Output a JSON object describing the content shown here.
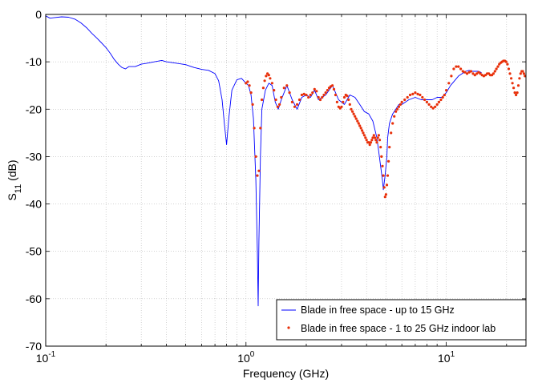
{
  "chart_data": {
    "type": "line",
    "xlabel": "Frequency (GHz)",
    "ylabel_main": "S",
    "ylabel_sub": "11",
    "ylabel_unit": " (dB)",
    "x_scale": "log",
    "xlim": [
      0.1,
      25
    ],
    "ylim": [
      -70,
      0
    ],
    "grid": true,
    "legend_position": "bottom-right",
    "x_ticks": [
      {
        "value": 0.1,
        "base": "10",
        "exp": "-1"
      },
      {
        "value": 1,
        "base": "10",
        "exp": "0"
      },
      {
        "value": 10,
        "base": "10",
        "exp": "1"
      }
    ],
    "y_ticks": [
      {
        "value": 0,
        "label": "0"
      },
      {
        "value": -10,
        "label": "-10"
      },
      {
        "value": -20,
        "label": "-20"
      },
      {
        "value": -30,
        "label": "-30"
      },
      {
        "value": -40,
        "label": "-40"
      },
      {
        "value": -50,
        "label": "-50"
      },
      {
        "value": -60,
        "label": "-60"
      },
      {
        "value": -70,
        "label": "-70"
      }
    ],
    "series": [
      {
        "name": "Blade in free space - up to 15 GHz",
        "style": "line",
        "color": "#0000ff",
        "points": [
          [
            0.1,
            -0.3
          ],
          [
            0.105,
            -0.8
          ],
          [
            0.11,
            -0.7
          ],
          [
            0.12,
            -0.5
          ],
          [
            0.13,
            -0.6
          ],
          [
            0.14,
            -1.0
          ],
          [
            0.15,
            -1.8
          ],
          [
            0.16,
            -2.8
          ],
          [
            0.17,
            -4.0
          ],
          [
            0.18,
            -5.0
          ],
          [
            0.19,
            -6.0
          ],
          [
            0.2,
            -7.0
          ],
          [
            0.21,
            -8.2
          ],
          [
            0.22,
            -9.5
          ],
          [
            0.23,
            -10.5
          ],
          [
            0.24,
            -11.2
          ],
          [
            0.25,
            -11.5
          ],
          [
            0.26,
            -11.0
          ],
          [
            0.28,
            -11.0
          ],
          [
            0.3,
            -10.5
          ],
          [
            0.32,
            -10.3
          ],
          [
            0.35,
            -10.0
          ],
          [
            0.38,
            -9.7
          ],
          [
            0.4,
            -10.0
          ],
          [
            0.45,
            -10.3
          ],
          [
            0.5,
            -10.6
          ],
          [
            0.55,
            -11.2
          ],
          [
            0.6,
            -11.6
          ],
          [
            0.65,
            -11.8
          ],
          [
            0.7,
            -12.5
          ],
          [
            0.73,
            -14.0
          ],
          [
            0.76,
            -18.0
          ],
          [
            0.78,
            -23.0
          ],
          [
            0.8,
            -27.5
          ],
          [
            0.82,
            -22.0
          ],
          [
            0.85,
            -16.0
          ],
          [
            0.9,
            -13.8
          ],
          [
            0.95,
            -13.5
          ],
          [
            1.0,
            -14.5
          ],
          [
            1.03,
            -15.0
          ],
          [
            1.06,
            -17.0
          ],
          [
            1.09,
            -22.0
          ],
          [
            1.12,
            -35.0
          ],
          [
            1.14,
            -50.0
          ],
          [
            1.15,
            -61.5
          ],
          [
            1.16,
            -48.0
          ],
          [
            1.18,
            -30.0
          ],
          [
            1.2,
            -20.0
          ],
          [
            1.25,
            -16.0
          ],
          [
            1.3,
            -14.5
          ],
          [
            1.35,
            -15.0
          ],
          [
            1.4,
            -18.5
          ],
          [
            1.45,
            -20.0
          ],
          [
            1.5,
            -18.0
          ],
          [
            1.6,
            -15.0
          ],
          [
            1.7,
            -18.0
          ],
          [
            1.8,
            -20.0
          ],
          [
            1.9,
            -17.5
          ],
          [
            2.0,
            -17.0
          ],
          [
            2.1,
            -17.5
          ],
          [
            2.2,
            -16.0
          ],
          [
            2.3,
            -18.0
          ],
          [
            2.5,
            -17.0
          ],
          [
            2.7,
            -15.0
          ],
          [
            2.9,
            -18.0
          ],
          [
            3.1,
            -19.0
          ],
          [
            3.3,
            -17.0
          ],
          [
            3.5,
            -17.5
          ],
          [
            3.7,
            -19.0
          ],
          [
            3.9,
            -20.5
          ],
          [
            4.1,
            -21.0
          ],
          [
            4.3,
            -22.5
          ],
          [
            4.5,
            -26.0
          ],
          [
            4.6,
            -29.0
          ],
          [
            4.7,
            -32.0
          ],
          [
            4.8,
            -35.0
          ],
          [
            4.85,
            -37.0
          ],
          [
            4.95,
            -34.0
          ],
          [
            5.05,
            -30.0
          ],
          [
            5.1,
            -26.0
          ],
          [
            5.2,
            -23.0
          ],
          [
            5.4,
            -21.0
          ],
          [
            5.6,
            -20.0
          ],
          [
            5.8,
            -19.0
          ],
          [
            6.0,
            -19.0
          ],
          [
            6.5,
            -18.0
          ],
          [
            7.0,
            -17.5
          ],
          [
            7.5,
            -18.0
          ],
          [
            8.0,
            -18.0
          ],
          [
            8.5,
            -18.0
          ],
          [
            9.0,
            -17.5
          ],
          [
            9.5,
            -17.5
          ],
          [
            10.0,
            -16.5
          ],
          [
            10.5,
            -15.0
          ],
          [
            11.0,
            -14.0
          ],
          [
            11.5,
            -13.0
          ],
          [
            12.0,
            -12.5
          ],
          [
            12.5,
            -12.0
          ],
          [
            13.0,
            -11.8
          ],
          [
            13.5,
            -12.0
          ],
          [
            14.0,
            -12.0
          ],
          [
            14.5,
            -12.0
          ],
          [
            15.0,
            -12.3
          ]
        ]
      },
      {
        "name": "Blade in free space - 1 to 25 GHz indoor lab",
        "style": "dots",
        "color": "#e8300a",
        "points": [
          [
            1.0,
            -14.5
          ],
          [
            1.02,
            -14.2
          ],
          [
            1.04,
            -15.0
          ],
          [
            1.06,
            -16.5
          ],
          [
            1.08,
            -19.0
          ],
          [
            1.1,
            -24.0
          ],
          [
            1.12,
            -30.0
          ],
          [
            1.14,
            -34.0
          ],
          [
            1.16,
            -33.0
          ],
          [
            1.18,
            -24.0
          ],
          [
            1.2,
            -18.0
          ],
          [
            1.22,
            -15.5
          ],
          [
            1.24,
            -14.0
          ],
          [
            1.26,
            -13.0
          ],
          [
            1.28,
            -12.5
          ],
          [
            1.3,
            -12.8
          ],
          [
            1.32,
            -13.5
          ],
          [
            1.35,
            -14.5
          ],
          [
            1.38,
            -16.0
          ],
          [
            1.41,
            -18.0
          ],
          [
            1.44,
            -19.5
          ],
          [
            1.47,
            -19.0
          ],
          [
            1.5,
            -17.5
          ],
          [
            1.55,
            -15.5
          ],
          [
            1.6,
            -15.0
          ],
          [
            1.65,
            -16.5
          ],
          [
            1.7,
            -18.5
          ],
          [
            1.75,
            -19.5
          ],
          [
            1.8,
            -19.0
          ],
          [
            1.85,
            -18.0
          ],
          [
            1.9,
            -17.0
          ],
          [
            1.95,
            -16.8
          ],
          [
            2.0,
            -17.0
          ],
          [
            2.05,
            -17.5
          ],
          [
            2.1,
            -17.0
          ],
          [
            2.15,
            -16.5
          ],
          [
            2.2,
            -15.8
          ],
          [
            2.25,
            -16.2
          ],
          [
            2.3,
            -17.5
          ],
          [
            2.35,
            -18.0
          ],
          [
            2.4,
            -17.5
          ],
          [
            2.45,
            -17.0
          ],
          [
            2.5,
            -16.5
          ],
          [
            2.55,
            -16.0
          ],
          [
            2.6,
            -15.5
          ],
          [
            2.65,
            -15.2
          ],
          [
            2.7,
            -15.0
          ],
          [
            2.75,
            -15.8
          ],
          [
            2.8,
            -17.0
          ],
          [
            2.85,
            -18.5
          ],
          [
            2.9,
            -19.5
          ],
          [
            2.95,
            -19.8
          ],
          [
            3.0,
            -19.5
          ],
          [
            3.05,
            -18.5
          ],
          [
            3.1,
            -17.5
          ],
          [
            3.15,
            -17.0
          ],
          [
            3.2,
            -17.2
          ],
          [
            3.25,
            -18.0
          ],
          [
            3.3,
            -19.0
          ],
          [
            3.35,
            -20.0
          ],
          [
            3.4,
            -20.5
          ],
          [
            3.45,
            -21.0
          ],
          [
            3.5,
            -21.5
          ],
          [
            3.55,
            -22.0
          ],
          [
            3.6,
            -22.5
          ],
          [
            3.65,
            -23.0
          ],
          [
            3.7,
            -23.5
          ],
          [
            3.75,
            -24.0
          ],
          [
            3.8,
            -24.5
          ],
          [
            3.85,
            -25.0
          ],
          [
            3.9,
            -25.5
          ],
          [
            3.95,
            -26.0
          ],
          [
            4.0,
            -26.5
          ],
          [
            4.05,
            -27.0
          ],
          [
            4.1,
            -27.0
          ],
          [
            4.15,
            -27.5
          ],
          [
            4.2,
            -27.0
          ],
          [
            4.25,
            -26.5
          ],
          [
            4.3,
            -26.0
          ],
          [
            4.35,
            -25.5
          ],
          [
            4.4,
            -26.0
          ],
          [
            4.45,
            -26.5
          ],
          [
            4.5,
            -27.0
          ],
          [
            4.55,
            -26.0
          ],
          [
            4.6,
            -25.5
          ],
          [
            4.65,
            -26.5
          ],
          [
            4.7,
            -28.0
          ],
          [
            4.75,
            -30.0
          ],
          [
            4.8,
            -32.0
          ],
          [
            4.85,
            -34.0
          ],
          [
            4.9,
            -36.5
          ],
          [
            4.95,
            -38.5
          ],
          [
            5.0,
            -38.0
          ],
          [
            5.05,
            -36.0
          ],
          [
            5.1,
            -34.0
          ],
          [
            5.15,
            -31.0
          ],
          [
            5.2,
            -28.0
          ],
          [
            5.3,
            -25.0
          ],
          [
            5.4,
            -23.0
          ],
          [
            5.5,
            -21.5
          ],
          [
            5.6,
            -20.5
          ],
          [
            5.7,
            -20.0
          ],
          [
            5.8,
            -19.5
          ],
          [
            5.9,
            -19.0
          ],
          [
            6.0,
            -18.5
          ],
          [
            6.2,
            -18.0
          ],
          [
            6.4,
            -17.5
          ],
          [
            6.6,
            -17.0
          ],
          [
            6.8,
            -16.8
          ],
          [
            7.0,
            -16.5
          ],
          [
            7.2,
            -16.8
          ],
          [
            7.4,
            -17.0
          ],
          [
            7.6,
            -17.5
          ],
          [
            7.8,
            -18.0
          ],
          [
            8.0,
            -18.5
          ],
          [
            8.2,
            -19.0
          ],
          [
            8.4,
            -19.5
          ],
          [
            8.6,
            -19.8
          ],
          [
            8.8,
            -19.5
          ],
          [
            9.0,
            -19.0
          ],
          [
            9.2,
            -18.5
          ],
          [
            9.4,
            -18.0
          ],
          [
            9.6,
            -17.5
          ],
          [
            9.8,
            -17.0
          ],
          [
            10.0,
            -16.0
          ],
          [
            10.3,
            -14.5
          ],
          [
            10.6,
            -13.0
          ],
          [
            10.9,
            -11.5
          ],
          [
            11.2,
            -11.0
          ],
          [
            11.5,
            -11.0
          ],
          [
            11.8,
            -11.5
          ],
          [
            12.1,
            -12.0
          ],
          [
            12.4,
            -12.2
          ],
          [
            12.7,
            -12.5
          ],
          [
            13.0,
            -12.2
          ],
          [
            13.3,
            -12.0
          ],
          [
            13.6,
            -12.5
          ],
          [
            13.9,
            -12.8
          ],
          [
            14.2,
            -12.5
          ],
          [
            14.5,
            -12.2
          ],
          [
            14.8,
            -12.5
          ],
          [
            15.1,
            -12.8
          ],
          [
            15.4,
            -13.0
          ],
          [
            15.7,
            -12.8
          ],
          [
            16.0,
            -12.5
          ],
          [
            16.3,
            -12.5
          ],
          [
            16.6,
            -12.8
          ],
          [
            16.9,
            -12.8
          ],
          [
            17.2,
            -12.5
          ],
          [
            17.5,
            -12.0
          ],
          [
            17.8,
            -11.5
          ],
          [
            18.1,
            -11.0
          ],
          [
            18.4,
            -10.5
          ],
          [
            18.7,
            -10.2
          ],
          [
            19.0,
            -10.0
          ],
          [
            19.3,
            -9.8
          ],
          [
            19.6,
            -9.8
          ],
          [
            19.9,
            -10.0
          ],
          [
            20.2,
            -10.5
          ],
          [
            20.5,
            -11.5
          ],
          [
            20.8,
            -12.5
          ],
          [
            21.1,
            -13.5
          ],
          [
            21.4,
            -14.5
          ],
          [
            21.7,
            -15.5
          ],
          [
            22.0,
            -16.5
          ],
          [
            22.3,
            -17.0
          ],
          [
            22.6,
            -16.5
          ],
          [
            22.9,
            -15.0
          ],
          [
            23.2,
            -13.5
          ],
          [
            23.5,
            -12.5
          ],
          [
            23.8,
            -12.0
          ],
          [
            24.1,
            -12.0
          ],
          [
            24.4,
            -12.5
          ],
          [
            24.7,
            -13.0
          ]
        ]
      }
    ]
  }
}
